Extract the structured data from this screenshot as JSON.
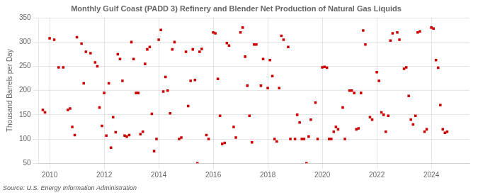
{
  "chart_data": {
    "type": "scatter",
    "title": "Monthly Gulf Coast (PADD 3) Refinery and Blender Net Production of Natural Gas Liquids",
    "ylabel": "Thousand Barrels per Day",
    "annotation": "Source: U.S. Energy Information Administration",
    "color": "#cc0000",
    "marker": "square",
    "grid": true,
    "xlim": [
      2009.6,
      2025.4
    ],
    "xticks": [
      2010,
      2012,
      2014,
      2016,
      2018,
      2020,
      2022,
      2024
    ],
    "ylim": [
      50,
      350
    ],
    "yticks": [
      50,
      100,
      150,
      200,
      250,
      300,
      350
    ],
    "x": [
      2009.75,
      2009.83,
      2010.0,
      2010.17,
      2010.33,
      2010.5,
      2010.67,
      2010.75,
      2010.83,
      2010.92,
      2011.0,
      2011.17,
      2011.25,
      2011.33,
      2011.5,
      2011.67,
      2011.75,
      2011.83,
      2011.92,
      2012.0,
      2012.08,
      2012.17,
      2012.25,
      2012.33,
      2012.42,
      2012.5,
      2012.58,
      2012.67,
      2012.75,
      2012.83,
      2012.92,
      2013.0,
      2013.08,
      2013.17,
      2013.25,
      2013.33,
      2013.42,
      2013.5,
      2013.58,
      2013.67,
      2013.75,
      2013.83,
      2013.92,
      2014.0,
      2014.08,
      2014.17,
      2014.25,
      2014.33,
      2014.42,
      2014.5,
      2014.58,
      2014.75,
      2014.83,
      2015.0,
      2015.08,
      2015.17,
      2015.25,
      2015.33,
      2015.42,
      2015.5,
      2015.58,
      2015.75,
      2015.83,
      2016.0,
      2016.08,
      2016.17,
      2016.25,
      2016.33,
      2016.42,
      2016.5,
      2016.58,
      2016.75,
      2016.83,
      2017.0,
      2017.08,
      2017.17,
      2017.25,
      2017.33,
      2017.42,
      2017.5,
      2017.58,
      2017.75,
      2017.83,
      2018.0,
      2018.08,
      2018.17,
      2018.25,
      2018.33,
      2018.42,
      2018.5,
      2018.58,
      2018.75,
      2018.83,
      2019.0,
      2019.08,
      2019.17,
      2019.25,
      2019.33,
      2019.42,
      2019.5,
      2019.58,
      2019.75,
      2019.83,
      2020.0,
      2020.08,
      2020.17,
      2020.25,
      2020.33,
      2020.42,
      2020.5,
      2020.58,
      2020.75,
      2020.83,
      2021.0,
      2021.08,
      2021.17,
      2021.25,
      2021.33,
      2021.42,
      2021.5,
      2021.58,
      2021.75,
      2021.83,
      2022.0,
      2022.08,
      2022.17,
      2022.25,
      2022.33,
      2022.42,
      2022.5,
      2022.58,
      2022.75,
      2022.83,
      2023.0,
      2023.08,
      2023.17,
      2023.25,
      2023.33,
      2023.42,
      2023.5,
      2023.58,
      2023.75,
      2023.83,
      2024.0,
      2024.08,
      2024.17,
      2024.25,
      2024.33,
      2024.42,
      2024.5,
      2024.58
    ],
    "values": [
      160,
      155,
      308,
      305,
      248,
      248,
      160,
      163,
      125,
      108,
      310,
      297,
      215,
      280,
      277,
      258,
      250,
      165,
      127,
      195,
      107,
      215,
      82,
      145,
      114,
      275,
      265,
      220,
      107,
      105,
      108,
      300,
      265,
      195,
      195,
      110,
      115,
      255,
      285,
      290,
      152,
      75,
      100,
      305,
      325,
      198,
      228,
      200,
      153,
      285,
      300,
      100,
      103,
      280,
      168,
      220,
      285,
      222,
      50,
      280,
      286,
      108,
      100,
      320,
      318,
      224,
      148,
      90,
      92,
      298,
      293,
      125,
      103,
      320,
      330,
      270,
      210,
      148,
      93,
      295,
      295,
      210,
      265,
      205,
      263,
      230,
      100,
      95,
      205,
      313,
      305,
      290,
      100,
      100,
      150,
      134,
      100,
      100,
      50,
      105,
      140,
      175,
      100,
      248,
      249,
      247,
      100,
      100,
      115,
      125,
      120,
      165,
      100,
      200,
      200,
      195,
      120,
      122,
      195,
      324,
      295,
      145,
      140,
      238,
      220,
      155,
      150,
      115,
      148,
      303,
      318,
      320,
      305,
      245,
      248,
      189,
      140,
      130,
      148,
      320,
      322,
      115,
      120,
      330,
      328,
      263,
      247,
      170,
      120,
      113,
      115
    ]
  }
}
